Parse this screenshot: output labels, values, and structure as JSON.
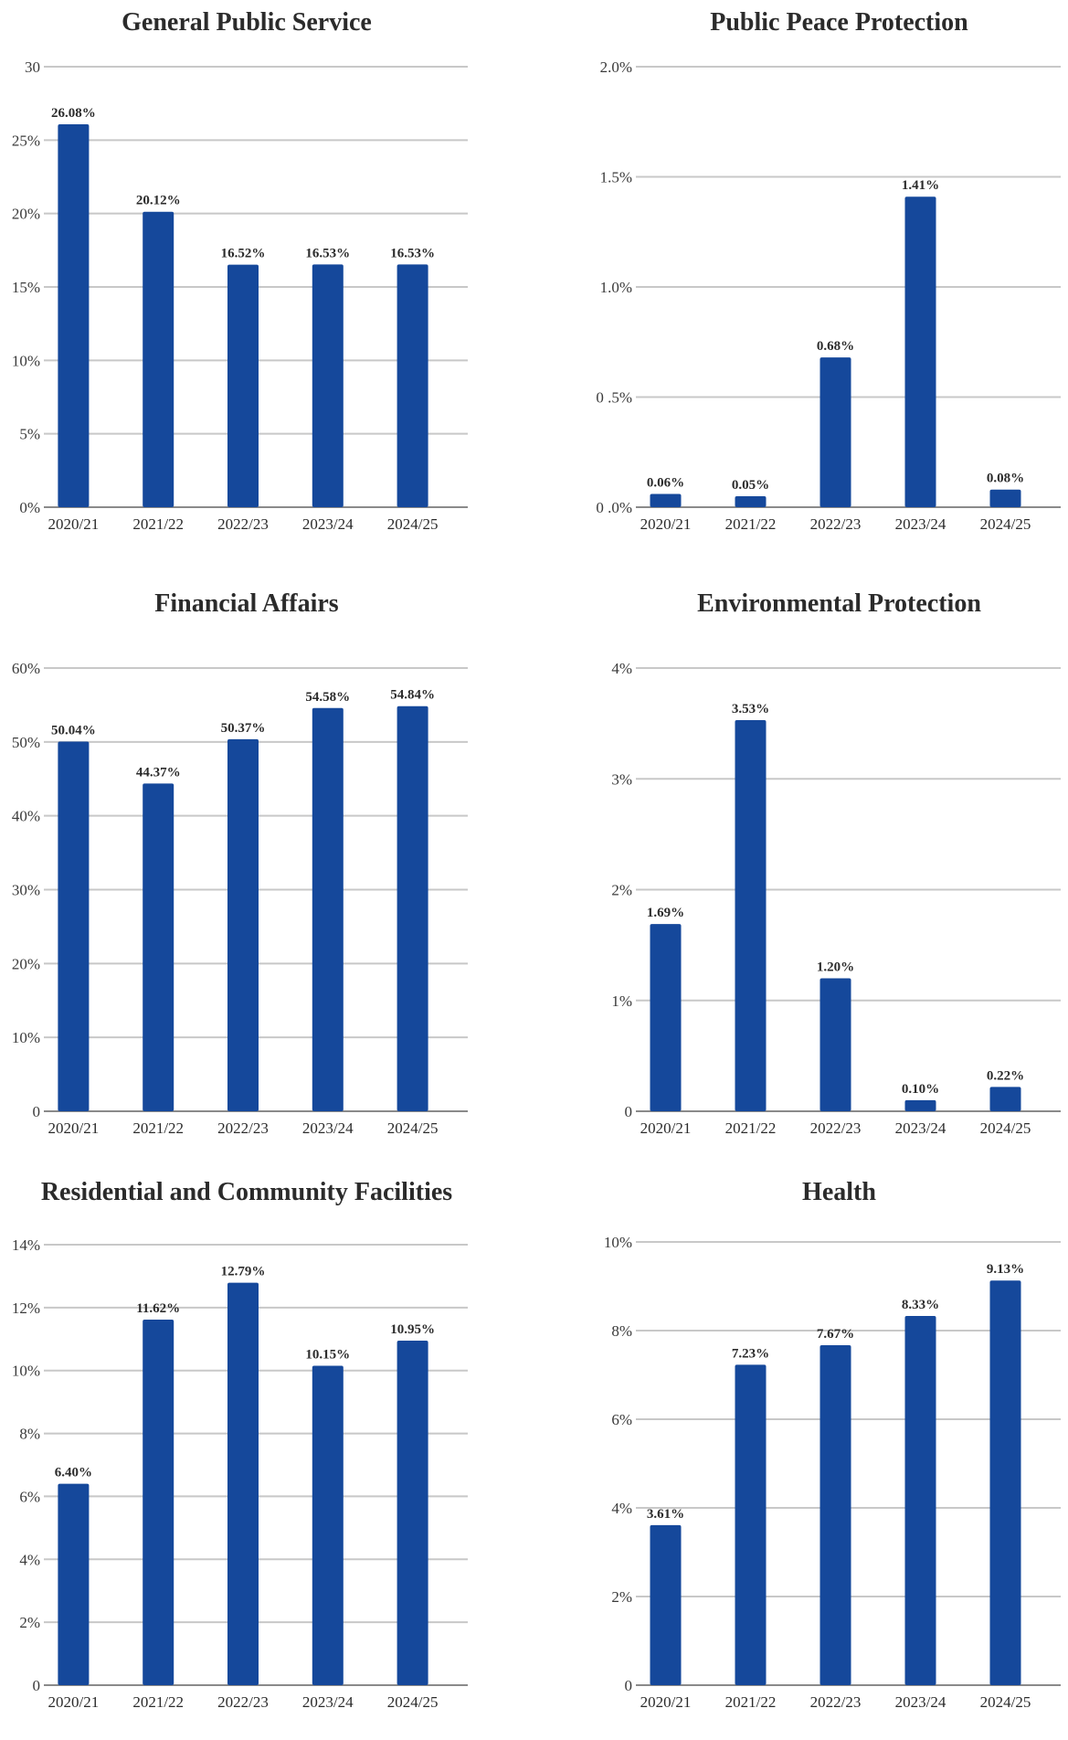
{
  "colors": {
    "bar": "#15489b",
    "grid": "#c8c8c8",
    "text": "#2b2b2b"
  },
  "chart_data": [
    {
      "type": "bar",
      "title": "General Public Service",
      "categories": [
        "2020/21",
        "2021/22",
        "2022/23",
        "2023/24",
        "2024/25"
      ],
      "values": [
        26.08,
        20.12,
        16.52,
        16.53,
        16.53
      ],
      "data_labels": [
        "26.08%",
        "20.12%",
        "16.52%",
        "16.53%",
        "16.53%"
      ],
      "ylim": [
        0,
        30
      ],
      "yticks": [
        0,
        5,
        10,
        15,
        20,
        25,
        30
      ],
      "ytick_labels": [
        "0%",
        "5%",
        "10%",
        "15%",
        "20%",
        "25%",
        "30"
      ],
      "grid": true
    },
    {
      "type": "bar",
      "title": "Public Peace Protection",
      "categories": [
        "2020/21",
        "2021/22",
        "2022/23",
        "2023/24",
        "2024/25"
      ],
      "values": [
        0.06,
        0.05,
        0.68,
        1.41,
        0.08
      ],
      "data_labels": [
        "0.06%",
        "0.05%",
        "0.68%",
        "1.41%",
        "0.08%"
      ],
      "ylim": [
        0,
        2.0
      ],
      "yticks": [
        0,
        0.5,
        1.0,
        1.5,
        2.0
      ],
      "ytick_labels": [
        "0 .0%",
        "0 .5%",
        "1.0%",
        "1.5%",
        "2.0%"
      ],
      "grid": true
    },
    {
      "type": "bar",
      "title": "Financial Affairs",
      "categories": [
        "2020/21",
        "2021/22",
        "2022/23",
        "2023/24",
        "2024/25"
      ],
      "values": [
        50.04,
        44.37,
        50.37,
        54.58,
        54.84
      ],
      "data_labels": [
        "50.04%",
        "44.37%",
        "50.37%",
        "54.58%",
        "54.84%"
      ],
      "ylim": [
        0,
        60
      ],
      "yticks": [
        0,
        10,
        20,
        30,
        40,
        50,
        60
      ],
      "ytick_labels": [
        "0",
        "10%",
        "20%",
        "30%",
        "40%",
        "50%",
        "60%"
      ],
      "grid": true
    },
    {
      "type": "bar",
      "title": "Environmental Protection",
      "categories": [
        "2020/21",
        "2021/22",
        "2022/23",
        "2023/24",
        "2024/25"
      ],
      "values": [
        1.69,
        3.53,
        1.2,
        0.1,
        0.22
      ],
      "data_labels": [
        "1.69%",
        "3.53%",
        "1.20%",
        "0.10%",
        "0.22%"
      ],
      "ylim": [
        0,
        4
      ],
      "yticks": [
        0,
        1,
        2,
        3,
        4
      ],
      "ytick_labels": [
        "0",
        "1%",
        "2%",
        "3%",
        "4%"
      ],
      "grid": true
    },
    {
      "type": "bar",
      "title": "Residential and Community Facilities",
      "categories": [
        "2020/21",
        "2021/22",
        "2022/23",
        "2023/24",
        "2024/25"
      ],
      "values": [
        6.4,
        11.62,
        12.79,
        10.15,
        10.95
      ],
      "data_labels": [
        "6.40%",
        "11.62%",
        "12.79%",
        "10.15%",
        "10.95%"
      ],
      "ylim": [
        0,
        14
      ],
      "yticks": [
        0,
        2,
        4,
        6,
        8,
        10,
        12,
        14
      ],
      "ytick_labels": [
        "0",
        "2%",
        "4%",
        "6%",
        "8%",
        "10%",
        "12%",
        "14%"
      ],
      "grid": true
    },
    {
      "type": "bar",
      "title": "Health",
      "categories": [
        "2020/21",
        "2021/22",
        "2022/23",
        "2023/24",
        "2024/25"
      ],
      "values": [
        3.61,
        7.23,
        7.67,
        8.33,
        9.13
      ],
      "data_labels": [
        "3.61%",
        "7.23%",
        "7.67%",
        "8.33%",
        "9.13%"
      ],
      "ylim": [
        0,
        10
      ],
      "yticks": [
        0,
        2,
        4,
        6,
        8,
        10
      ],
      "ytick_labels": [
        "0",
        "2%",
        "4%",
        "6%",
        "8%",
        "10%"
      ],
      "grid": true
    }
  ]
}
